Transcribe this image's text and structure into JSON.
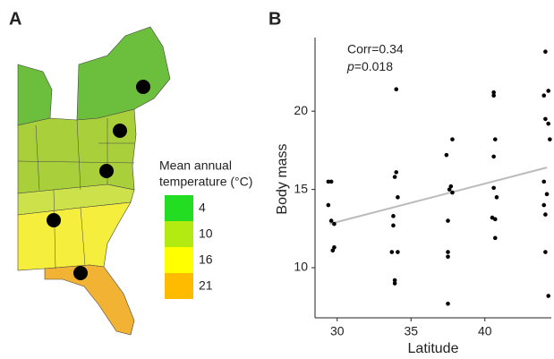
{
  "chart_data": [
    {
      "type": "map",
      "panel": "A",
      "legend": {
        "title_lines": [
          "Mean annual",
          "temperature (°C)"
        ],
        "entries": [
          {
            "value": 4,
            "color": "#22dd22"
          },
          {
            "value": 10,
            "color": "#b3ea11"
          },
          {
            "value": 16,
            "color": "#ffff00"
          },
          {
            "value": 21,
            "color": "#ffbb00"
          }
        ]
      }
    },
    {
      "type": "scatter",
      "panel": "B",
      "x_label": "Latitude",
      "y_label": "Body mass",
      "annotation": {
        "corr": "Corr=0.34",
        "p_symbol": "p",
        "p_value": "=0.018"
      },
      "xlim": [
        28.5,
        44.5
      ],
      "ylim": [
        6.8,
        24.7
      ],
      "xticks": [
        30,
        35,
        40
      ],
      "yticks": [
        10,
        15,
        20
      ],
      "color": "#000000",
      "x": [
        29.4,
        29.6,
        29.4,
        29.6,
        29.8,
        29.8,
        29.7,
        34.0,
        34.0,
        33.9,
        33.8,
        34.1,
        33.8,
        33.7,
        34.1,
        33.9,
        33.9,
        37.8,
        37.4,
        37.7,
        37.6,
        37.8,
        37.5,
        37.5,
        37.5,
        37.5,
        40.6,
        40.6,
        40.7,
        40.6,
        40.6,
        40.8,
        40.5,
        40.7,
        40.7,
        44.1,
        44.3,
        44.0,
        44.1,
        44.3,
        44.4,
        44.0,
        44.2,
        44.0,
        44.1,
        44.1,
        44.3
      ],
      "values": [
        15.5,
        15.5,
        14.0,
        13.0,
        12.8,
        11.3,
        11.1,
        21.4,
        16.1,
        15.8,
        13.3,
        14.5,
        12.7,
        11.0,
        11.0,
        9.2,
        9.0,
        18.2,
        17.2,
        15.2,
        15.0,
        14.8,
        13.0,
        11.0,
        10.7,
        7.7,
        21.2,
        21.0,
        18.2,
        17.1,
        15.1,
        14.5,
        13.2,
        13.1,
        11.9,
        23.8,
        21.3,
        21.0,
        19.5,
        19.2,
        18.2,
        15.5,
        14.7,
        14.0,
        13.4,
        11.0,
        8.2
      ],
      "trend": {
        "x": [
          29.5,
          44.2
        ],
        "values": [
          12.8,
          16.4
        ],
        "color": "#bbbbbb"
      }
    }
  ]
}
